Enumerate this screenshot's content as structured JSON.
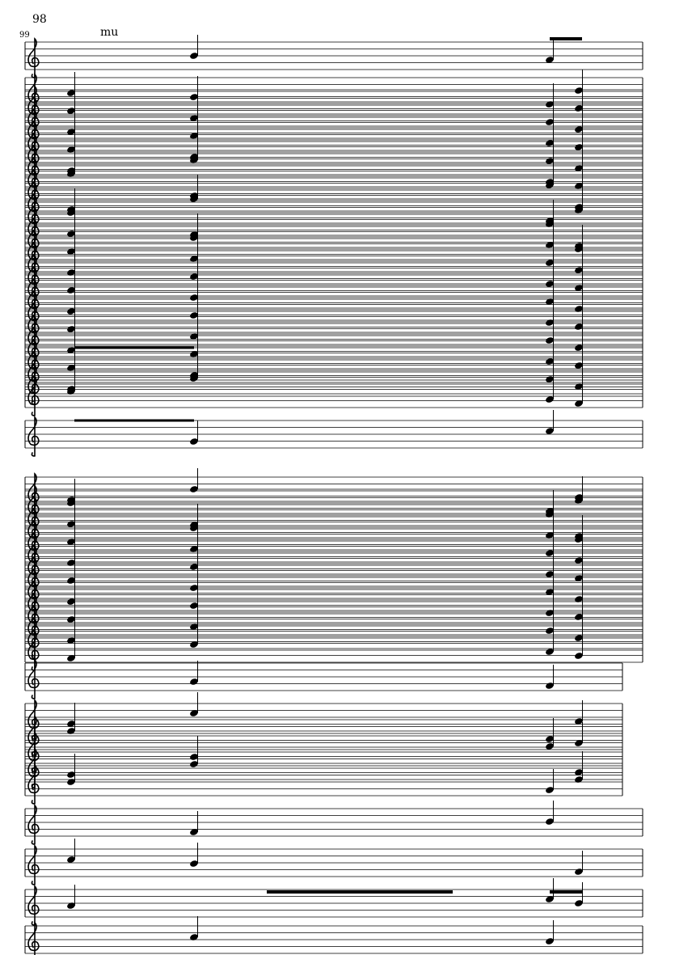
{
  "score": {
    "measure_number_top": "98",
    "measure_number_system": "99",
    "lyric_text": "mu",
    "clef": "treble-clef-icon",
    "ink_color": "#000000",
    "paper_color": "#ffffff"
  }
}
